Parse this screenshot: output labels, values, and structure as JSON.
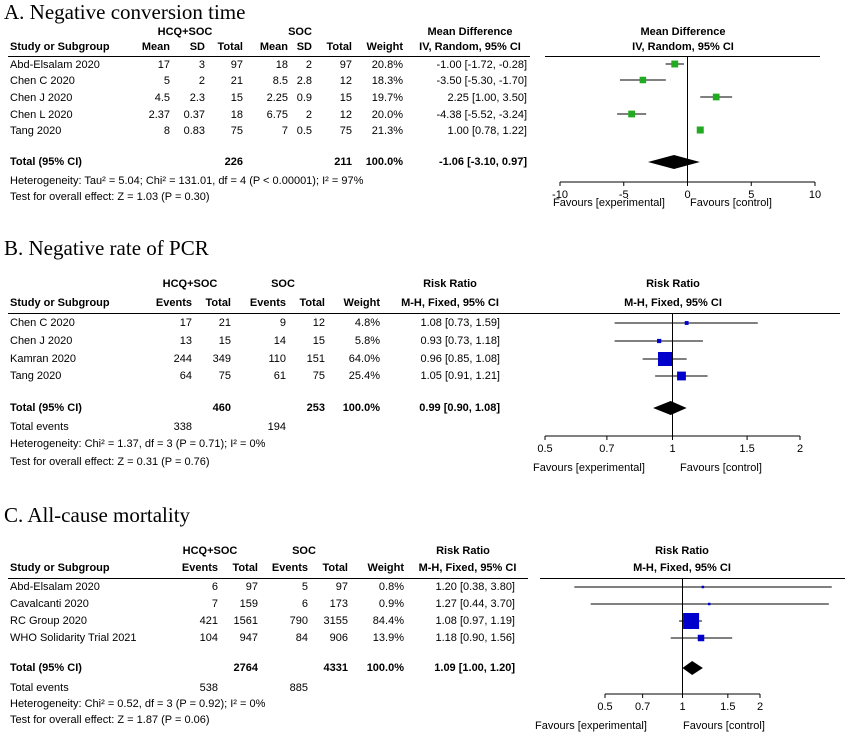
{
  "panels": [
    {
      "title": "A. Negative conversion time",
      "measure_header": "Mean Difference",
      "method_header": "IV, Random, 95% CI",
      "study_header": "Study or Subgroup",
      "weight_header": "Weight",
      "group1": "HCQ+SOC",
      "group2": "SOC",
      "col_headers": [
        "Mean",
        "SD",
        "Total",
        "Mean",
        "SD",
        "Total"
      ],
      "rows": [
        {
          "study": "Abd-Elsalam 2020",
          "cells": [
            "17",
            "3",
            "97",
            "18",
            "2",
            "97"
          ],
          "weight": "20.8%",
          "ci": "-1.00 [-1.72, -0.28]"
        },
        {
          "study": "Chen C 2020",
          "cells": [
            "5",
            "2",
            "21",
            "8.5",
            "2.8",
            "12"
          ],
          "weight": "18.3%",
          "ci": "-3.50 [-5.30, -1.70]"
        },
        {
          "study": "Chen J 2020",
          "cells": [
            "4.5",
            "2.3",
            "15",
            "2.25",
            "0.9",
            "15"
          ],
          "weight": "19.7%",
          "ci": "2.25 [1.00, 3.50]"
        },
        {
          "study": "Chen L 2020",
          "cells": [
            "2.37",
            "0.37",
            "18",
            "6.75",
            "2",
            "12"
          ],
          "weight": "20.0%",
          "ci": "-4.38 [-5.52, -3.24]"
        },
        {
          "study": "Tang 2020",
          "cells": [
            "8",
            "0.83",
            "75",
            "7",
            "0.5",
            "75"
          ],
          "weight": "21.3%",
          "ci": "1.00 [0.78, 1.22]"
        }
      ],
      "total": {
        "label": "Total (95% CI)",
        "total1": "226",
        "total2": "211",
        "weight": "100.0%",
        "ci": "-1.06 [-3.10, 0.97]"
      },
      "heterogeneity": "Heterogeneity: Tau² = 5.04; Chi² = 131.01, df = 4 (P < 0.00001); I² = 97%",
      "overall": "Test for overall effect: Z = 1.03 (P = 0.30)",
      "favours_left": "Favours [experimental]",
      "favours_right": "Favours [control]"
    },
    {
      "title": "B. Negative rate of PCR",
      "measure_header": "Risk Ratio",
      "method_header": "M-H, Fixed, 95% CI",
      "study_header": "Study or Subgroup",
      "weight_header": "Weight",
      "group1": "HCQ+SOC",
      "group2": "SOC",
      "col_headers": [
        "Events",
        "Total",
        "Events",
        "Total"
      ],
      "rows": [
        {
          "study": "Chen C 2020",
          "cells": [
            "17",
            "21",
            "9",
            "12"
          ],
          "weight": "4.8%",
          "ci": "1.08 [0.73, 1.59]"
        },
        {
          "study": "Chen J 2020",
          "cells": [
            "13",
            "15",
            "14",
            "15"
          ],
          "weight": "5.8%",
          "ci": "0.93 [0.73, 1.18]"
        },
        {
          "study": "Kamran 2020",
          "cells": [
            "244",
            "349",
            "110",
            "151"
          ],
          "weight": "64.0%",
          "ci": "0.96 [0.85, 1.08]"
        },
        {
          "study": "Tang 2020",
          "cells": [
            "64",
            "75",
            "61",
            "75"
          ],
          "weight": "25.4%",
          "ci": "1.05 [0.91, 1.21]"
        }
      ],
      "total": {
        "label": "Total (95% CI)",
        "total1": "460",
        "total2": "253",
        "weight": "100.0%",
        "ci": "0.99 [0.90, 1.08]"
      },
      "total_events": {
        "label": "Total events",
        "events1": "338",
        "events2": "194"
      },
      "heterogeneity": "Heterogeneity: Chi² = 1.37, df = 3 (P = 0.71); I² = 0%",
      "overall": "Test for overall effect: Z = 0.31 (P = 0.76)",
      "favours_left": "Favours [experimental]",
      "favours_right": "Favours [control]"
    },
    {
      "title": "C. All-cause mortality",
      "measure_header": "Risk Ratio",
      "method_header": "M-H, Fixed, 95% CI",
      "study_header": "Study or Subgroup",
      "weight_header": "Weight",
      "group1": "HCQ+SOC",
      "group2": "SOC",
      "col_headers": [
        "Events",
        "Total",
        "Events",
        "Total"
      ],
      "rows": [
        {
          "study": "Abd-Elsalam 2020",
          "cells": [
            "6",
            "97",
            "5",
            "97"
          ],
          "weight": "0.8%",
          "ci": "1.20 [0.38, 3.80]"
        },
        {
          "study": "Cavalcanti 2020",
          "cells": [
            "7",
            "159",
            "6",
            "173"
          ],
          "weight": "0.9%",
          "ci": "1.27 [0.44, 3.70]"
        },
        {
          "study": "RC Group 2020",
          "cells": [
            "421",
            "1561",
            "790",
            "3155"
          ],
          "weight": "84.4%",
          "ci": "1.08 [0.97, 1.19]"
        },
        {
          "study": "WHO Solidarity Trial 2021",
          "cells": [
            "104",
            "947",
            "84",
            "906"
          ],
          "weight": "13.9%",
          "ci": "1.18 [0.90, 1.56]"
        }
      ],
      "total": {
        "label": "Total (95% CI)",
        "total1": "2764",
        "total2": "4331",
        "weight": "100.0%",
        "ci": "1.09 [1.00, 1.20]"
      },
      "total_events": {
        "label": "Total events",
        "events1": "538",
        "events2": "885"
      },
      "heterogeneity": "Heterogeneity: Chi² = 0.52, df = 3 (P = 0.92); I² = 0%",
      "overall": "Test for overall effect: Z = 1.87 (P = 0.06)",
      "favours_left": "Favours [experimental]",
      "favours_right": "Favours [control]"
    }
  ],
  "chart_data": [
    {
      "type": "forest",
      "title": "A. Negative conversion time",
      "scale": "linear",
      "xlim": [
        -10,
        10
      ],
      "ticks": [
        "-10",
        "-5",
        "0",
        "5",
        "10"
      ],
      "tick_values": [
        -10,
        -5,
        0,
        5,
        10
      ],
      "marker_color": "#22aa22",
      "studies": [
        {
          "est": -1.0,
          "lo": -1.72,
          "hi": -0.28,
          "weight": 20.8
        },
        {
          "est": -3.5,
          "lo": -5.3,
          "hi": -1.7,
          "weight": 18.3
        },
        {
          "est": 2.25,
          "lo": 1.0,
          "hi": 3.5,
          "weight": 19.7
        },
        {
          "est": -4.38,
          "lo": -5.52,
          "hi": -3.24,
          "weight": 20.0
        },
        {
          "est": 1.0,
          "lo": 0.78,
          "hi": 1.22,
          "weight": 21.3
        }
      ],
      "pooled": {
        "est": -1.06,
        "lo": -3.1,
        "hi": 0.97
      }
    },
    {
      "type": "forest",
      "title": "B. Negative rate of PCR",
      "scale": "log",
      "xlim": [
        0.5,
        2
      ],
      "ticks": [
        "0.5",
        "0.7",
        "1",
        "1.5",
        "2"
      ],
      "tick_values": [
        0.5,
        0.7,
        1,
        1.5,
        2
      ],
      "marker_color": "#0000cc",
      "studies": [
        {
          "est": 1.08,
          "lo": 0.73,
          "hi": 1.59,
          "weight": 4.8
        },
        {
          "est": 0.93,
          "lo": 0.73,
          "hi": 1.18,
          "weight": 5.8
        },
        {
          "est": 0.96,
          "lo": 0.85,
          "hi": 1.08,
          "weight": 64.0
        },
        {
          "est": 1.05,
          "lo": 0.91,
          "hi": 1.21,
          "weight": 25.4
        }
      ],
      "pooled": {
        "est": 0.99,
        "lo": 0.9,
        "hi": 1.08
      }
    },
    {
      "type": "forest",
      "title": "C. All-cause mortality",
      "scale": "log",
      "xlim": [
        0.5,
        2
      ],
      "ticks": [
        "0.5",
        "0.7",
        "1",
        "1.5",
        "2"
      ],
      "tick_values": [
        0.5,
        0.7,
        1,
        1.5,
        2
      ],
      "marker_color": "#0000cc",
      "studies": [
        {
          "est": 1.2,
          "lo": 0.38,
          "hi": 3.8,
          "weight": 0.8
        },
        {
          "est": 1.27,
          "lo": 0.44,
          "hi": 3.7,
          "weight": 0.9
        },
        {
          "est": 1.08,
          "lo": 0.97,
          "hi": 1.19,
          "weight": 84.4
        },
        {
          "est": 1.18,
          "lo": 0.9,
          "hi": 1.56,
          "weight": 13.9
        }
      ],
      "pooled": {
        "est": 1.09,
        "lo": 1.0,
        "hi": 1.2
      }
    }
  ]
}
